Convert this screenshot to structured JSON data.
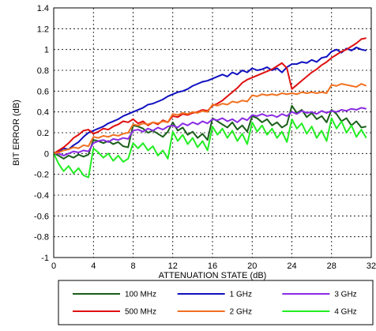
{
  "chart_data": {
    "type": "line",
    "title": "",
    "xlabel": "ATTENUATION STATE (dB)",
    "ylabel": "BIT ERROR (dB)",
    "xlim": [
      0,
      32
    ],
    "ylim": [
      -1,
      1.4
    ],
    "x_ticks": [
      "0",
      "4",
      "8",
      "12",
      "16",
      "20",
      "24",
      "28",
      "32"
    ],
    "y_ticks": [
      "1.4",
      "1.2",
      "1",
      "0.8",
      "0.6",
      "0.4",
      "0.2",
      "0",
      "-0.2",
      "-0.4",
      "-0.6",
      "-0.8",
      "-1"
    ],
    "grid": true,
    "legend_position": "bottom",
    "x": [
      0,
      0.5,
      1,
      1.5,
      2,
      2.5,
      3,
      3.5,
      4,
      4.5,
      5,
      5.5,
      6,
      6.5,
      7,
      7.5,
      8,
      8.5,
      9,
      9.5,
      10,
      10.5,
      11,
      11.5,
      12,
      12.5,
      13,
      13.5,
      14,
      14.5,
      15,
      15.5,
      16,
      16.5,
      17,
      17.5,
      18,
      18.5,
      19,
      19.5,
      20,
      20.5,
      21,
      21.5,
      22,
      22.5,
      23,
      23.5,
      24,
      24.5,
      25,
      25.5,
      26,
      26.5,
      27,
      27.5,
      28,
      28.5,
      29,
      29.5,
      30,
      30.5,
      31,
      31.5
    ],
    "series": [
      {
        "name": "100 MHz",
        "color": "#1a5e1a",
        "values": [
          0,
          -0.02,
          -0.05,
          -0.02,
          -0.04,
          -0.01,
          -0.03,
          -0.01,
          0.13,
          0.12,
          0.1,
          0.12,
          0.09,
          0.11,
          0.07,
          0.06,
          0.27,
          0.26,
          0.24,
          0.2,
          0.22,
          0.19,
          0.16,
          0.21,
          0.3,
          0.22,
          0.25,
          0.18,
          0.21,
          0.15,
          0.19,
          0.13,
          0.34,
          0.31,
          0.28,
          0.25,
          0.3,
          0.23,
          0.27,
          0.21,
          0.36,
          0.34,
          0.3,
          0.33,
          0.27,
          0.3,
          0.25,
          0.28,
          0.46,
          0.39,
          0.42,
          0.35,
          0.39,
          0.33,
          0.36,
          0.3,
          0.42,
          0.38,
          0.31,
          0.34,
          0.27,
          0.31,
          0.25,
          0.26
        ]
      },
      {
        "name": "1 GHz",
        "color": "#1010c0",
        "values": [
          0,
          0.02,
          0.05,
          0.04,
          0.08,
          0.11,
          0.16,
          0.2,
          0.22,
          0.24,
          0.26,
          0.29,
          0.31,
          0.33,
          0.36,
          0.38,
          0.4,
          0.42,
          0.44,
          0.47,
          0.48,
          0.5,
          0.52,
          0.55,
          0.57,
          0.59,
          0.6,
          0.62,
          0.65,
          0.67,
          0.69,
          0.7,
          0.72,
          0.74,
          0.76,
          0.74,
          0.78,
          0.76,
          0.8,
          0.78,
          0.82,
          0.8,
          0.81,
          0.83,
          0.8,
          0.82,
          0.78,
          0.83,
          0.86,
          0.86,
          0.88,
          0.87,
          0.9,
          0.88,
          0.92,
          0.93,
          0.98,
          1.0,
          0.97,
          1.01,
          0.99,
          1.02,
          1.0,
          0.99
        ]
      },
      {
        "name": "3 GHz",
        "color": "#8a2be2",
        "values": [
          0,
          0.0,
          -0.02,
          0.0,
          0.02,
          0.01,
          0.03,
          0.02,
          0.1,
          0.12,
          0.13,
          0.11,
          0.14,
          0.13,
          0.15,
          0.14,
          0.22,
          0.23,
          0.21,
          0.24,
          0.22,
          0.25,
          0.23,
          0.26,
          0.27,
          0.25,
          0.29,
          0.27,
          0.3,
          0.28,
          0.31,
          0.29,
          0.33,
          0.32,
          0.34,
          0.31,
          0.33,
          0.3,
          0.34,
          0.32,
          0.37,
          0.36,
          0.38,
          0.36,
          0.37,
          0.35,
          0.38,
          0.36,
          0.4,
          0.38,
          0.41,
          0.39,
          0.4,
          0.38,
          0.41,
          0.39,
          0.41,
          0.4,
          0.42,
          0.41,
          0.43,
          0.42,
          0.44,
          0.43
        ]
      },
      {
        "name": "500 MHz",
        "color": "#e01010",
        "values": [
          0,
          0.03,
          0.06,
          0.1,
          0.15,
          0.18,
          0.22,
          0.23,
          0.19,
          0.21,
          0.24,
          0.23,
          0.26,
          0.28,
          0.31,
          0.3,
          0.33,
          0.29,
          0.31,
          0.27,
          0.3,
          0.28,
          0.32,
          0.3,
          0.36,
          0.35,
          0.38,
          0.37,
          0.39,
          0.4,
          0.42,
          0.41,
          0.46,
          0.48,
          0.51,
          0.55,
          0.59,
          0.63,
          0.68,
          0.71,
          0.73,
          0.75,
          0.77,
          0.79,
          0.81,
          0.84,
          0.87,
          0.82,
          0.62,
          0.66,
          0.7,
          0.74,
          0.78,
          0.81,
          0.85,
          0.88,
          0.92,
          0.95,
          0.98,
          1.0,
          1.03,
          1.06,
          1.1,
          1.11
        ]
      },
      {
        "name": "2 GHz",
        "color": "#f07020",
        "values": [
          0,
          0.01,
          0.03,
          0.04,
          0.06,
          0.05,
          0.08,
          0.07,
          0.16,
          0.15,
          0.17,
          0.16,
          0.18,
          0.17,
          0.19,
          0.2,
          0.28,
          0.27,
          0.29,
          0.28,
          0.3,
          0.29,
          0.31,
          0.3,
          0.38,
          0.37,
          0.39,
          0.38,
          0.4,
          0.39,
          0.41,
          0.4,
          0.47,
          0.46,
          0.48,
          0.47,
          0.5,
          0.49,
          0.51,
          0.5,
          0.56,
          0.55,
          0.57,
          0.56,
          0.57,
          0.56,
          0.58,
          0.57,
          0.58,
          0.57,
          0.59,
          0.58,
          0.59,
          0.58,
          0.59,
          0.58,
          0.66,
          0.65,
          0.67,
          0.66,
          0.65,
          0.64,
          0.67,
          0.65
        ]
      },
      {
        "name": "4 GHz",
        "color": "#22ee22",
        "values": [
          0,
          -0.1,
          -0.17,
          -0.12,
          -0.19,
          -0.14,
          -0.21,
          -0.23,
          0.05,
          0.01,
          -0.04,
          0.0,
          -0.07,
          -0.02,
          -0.08,
          -0.05,
          0.1,
          0.05,
          0.1,
          0.03,
          0.07,
          -0.02,
          0.03,
          -0.05,
          0.21,
          0.12,
          0.18,
          0.09,
          0.15,
          0.06,
          0.12,
          0.03,
          0.26,
          0.18,
          0.24,
          0.15,
          0.22,
          0.12,
          0.19,
          0.09,
          0.3,
          0.21,
          0.27,
          0.18,
          0.24,
          0.15,
          0.21,
          0.11,
          0.33,
          0.24,
          0.29,
          0.19,
          0.26,
          0.15,
          0.22,
          0.12,
          0.34,
          0.24,
          0.31,
          0.2,
          0.27,
          0.16,
          0.23,
          0.15
        ]
      }
    ]
  }
}
